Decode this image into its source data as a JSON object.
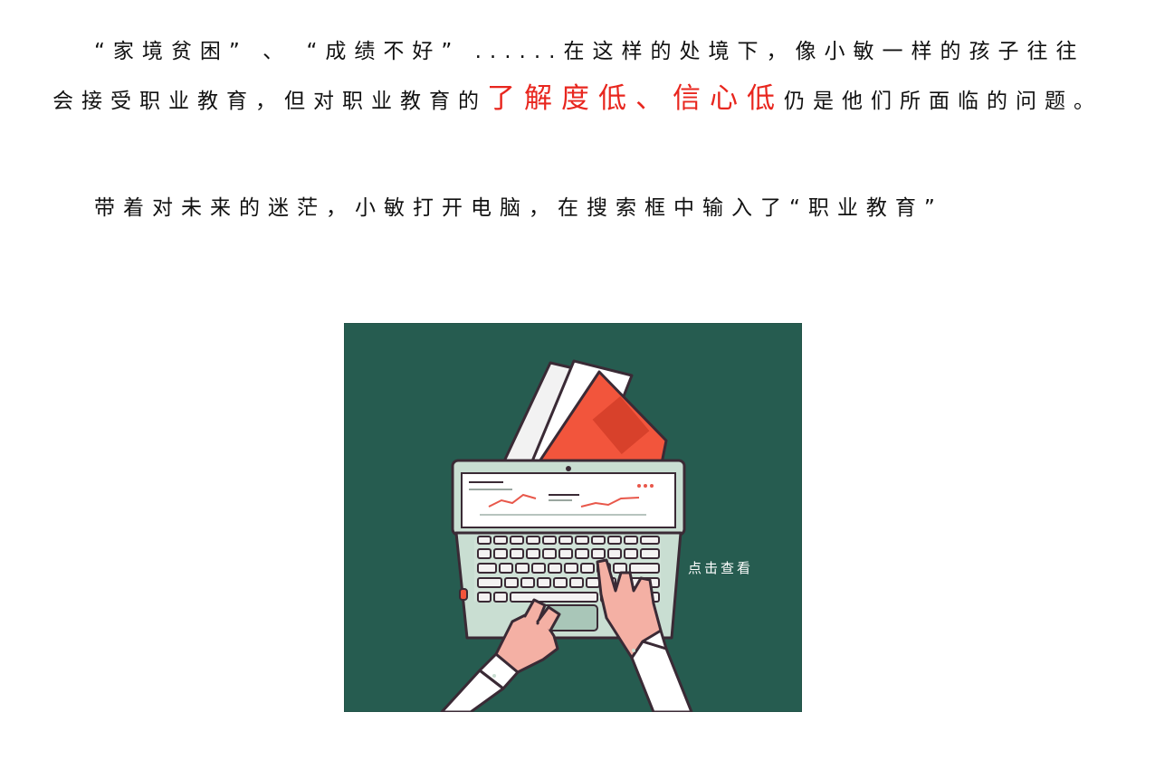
{
  "story": {
    "para1": {
      "lead": "“家境贫困” 、 “成绩不好” ......在这样的处境下，像小敏一样的孩子往往会接受职业教育，但对职业教育的",
      "highlight": "了解度低、信心低",
      "tail": "仍是他们所面临的问题。"
    },
    "para2": "带着对未来的迷茫，小敏打开电脑，在搜索框中输入了“职业教育”"
  },
  "illustration": {
    "click_label": "点击查看",
    "icon": "laptop-with-folders-illustration",
    "colors": {
      "background": "#265c50",
      "folder_red": "#f2553c",
      "laptop_body": "#c9ded2",
      "key": "#f4f2f2",
      "outline": "#3a2a35",
      "skin": "#f4b0a4",
      "chart_line": "#e8574a"
    }
  }
}
